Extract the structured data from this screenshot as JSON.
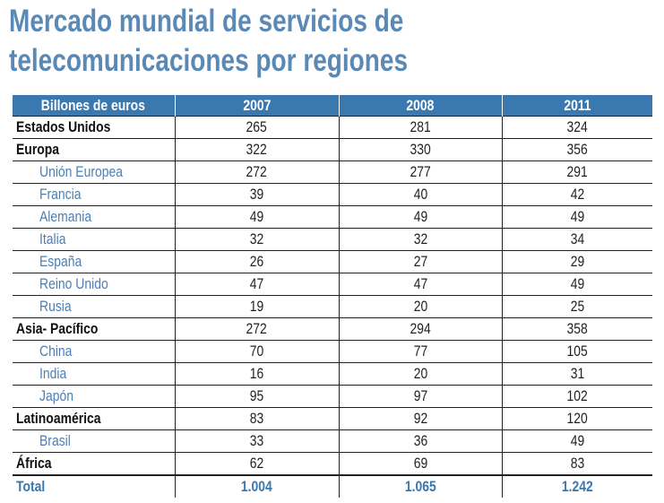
{
  "title": [
    "Mercado mundial de servicios de",
    "telecomunicaciones por regiones"
  ],
  "colors": {
    "title": "#5a89b6",
    "header_bg": "#3a78b0",
    "subregion_text": "#4a7fb5"
  },
  "table": {
    "headers": [
      "Billones de euros",
      "2007",
      "2008",
      "2011"
    ],
    "rows": [
      {
        "label": "Estados Unidos",
        "level": "region",
        "values": [
          "265",
          "281",
          "324"
        ]
      },
      {
        "label": "Europa",
        "level": "region",
        "values": [
          "322",
          "330",
          "356"
        ]
      },
      {
        "label": "Unión Europea",
        "level": "sub",
        "values": [
          "272",
          "277",
          "291"
        ]
      },
      {
        "label": "Francia",
        "level": "sub",
        "values": [
          "39",
          "40",
          "42"
        ]
      },
      {
        "label": "Alemania",
        "level": "sub",
        "values": [
          "49",
          "49",
          "49"
        ]
      },
      {
        "label": "Italia",
        "level": "sub",
        "values": [
          "32",
          "32",
          "34"
        ]
      },
      {
        "label": "España",
        "level": "sub",
        "values": [
          "26",
          "27",
          "29"
        ]
      },
      {
        "label": "Reino Unido",
        "level": "sub",
        "values": [
          "47",
          "47",
          "49"
        ]
      },
      {
        "label": "Rusia",
        "level": "sub",
        "values": [
          "19",
          "20",
          "25"
        ]
      },
      {
        "label": "Asia- Pacífico",
        "level": "region",
        "values": [
          "272",
          "294",
          "358"
        ]
      },
      {
        "label": "China",
        "level": "sub",
        "values": [
          "70",
          "77",
          "105"
        ]
      },
      {
        "label": "India",
        "level": "sub",
        "values": [
          "16",
          "20",
          "31"
        ]
      },
      {
        "label": "Japón",
        "level": "sub",
        "values": [
          "95",
          "97",
          "102"
        ]
      },
      {
        "label": "Latinoamérica",
        "level": "region",
        "values": [
          "83",
          "92",
          "120"
        ]
      },
      {
        "label": "Brasil",
        "level": "sub",
        "values": [
          "33",
          "36",
          "49"
        ]
      },
      {
        "label": "África",
        "level": "region",
        "values": [
          "62",
          "69",
          "83"
        ]
      },
      {
        "label": "Total",
        "level": "total",
        "values": [
          "1.004",
          "1.065",
          "1.242"
        ]
      }
    ]
  }
}
